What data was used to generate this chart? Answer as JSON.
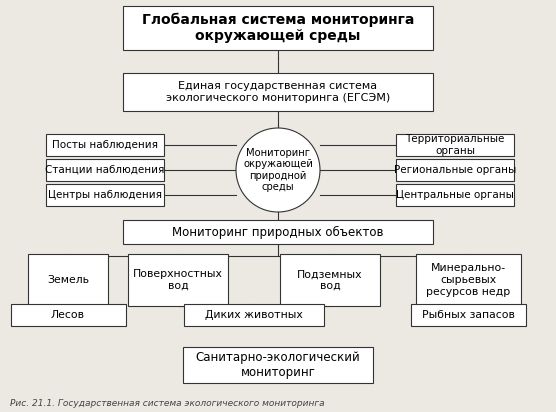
{
  "title": "Глобальная система мониторинга\nокружающей среды",
  "node1": "Единая государственная система\nэкологического мониторинга (ЕГСЭМ)",
  "circle_node": "Мониторинг\nокружающей\nприродной\nсреды",
  "left_boxes": [
    "Посты наблюдения",
    "Станции наблюдения",
    "Центры наблюдения"
  ],
  "right_boxes": [
    "Территориальные\nорганы",
    "Региональные органы",
    "Центральные органы"
  ],
  "node2": "Мониторинг природных объектов",
  "top_row_boxes": [
    "Земель",
    "Поверхностных\nвод",
    "Подземных\nвод",
    "Минерально-\nсырьевых\nресурсов недр"
  ],
  "bottom_row_boxes": [
    "Лесов",
    "Диких животных",
    "Рыбных запасов"
  ],
  "node3": "Санитарно-экологический\nмониторинг",
  "caption": "Рис. 21.1. Государственная система экологического мониторинга",
  "bg_color": "#ece9e3",
  "box_fill": "#ffffff",
  "box_edge": "#333333",
  "text_color": "#000000"
}
